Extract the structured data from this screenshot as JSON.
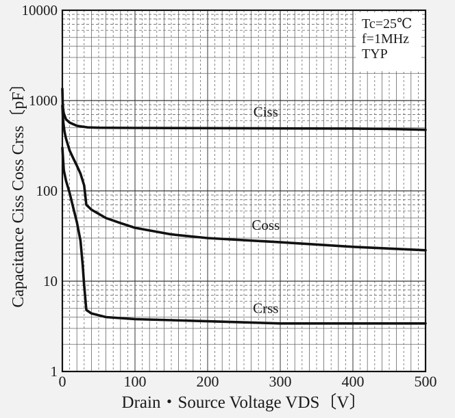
{
  "chart_data": {
    "type": "line",
    "x_scale": "linear",
    "y_scale": "log",
    "xlim": [
      0,
      500
    ],
    "ylim": [
      1,
      10000
    ],
    "x_ticks": [
      "0",
      "100",
      "200",
      "300",
      "400",
      "500"
    ],
    "y_ticks": [
      "1",
      "10",
      "100",
      "1000",
      "10000"
    ],
    "xlabel": "Drain・Source Voltage VDS〔V〕",
    "ylabel": "Capacitance  Ciss Coss Crss〔pF〕",
    "conditions": [
      "Tc=25℃",
      "f=1MHz",
      "TYP"
    ],
    "grid": true,
    "series": [
      {
        "name": "Ciss",
        "x": [
          0,
          0.5,
          1,
          2,
          5,
          10,
          20,
          35,
          50,
          100,
          200,
          300,
          400,
          450,
          500
        ],
        "y": [
          1350,
          950,
          800,
          720,
          620,
          570,
          525,
          505,
          500,
          498,
          495,
          492,
          490,
          485,
          475
        ]
      },
      {
        "name": "Coss",
        "x": [
          0,
          1,
          3,
          5,
          10,
          15,
          20,
          25,
          30,
          33,
          40,
          60,
          80,
          100,
          150,
          200,
          300,
          400,
          500
        ],
        "y": [
          880,
          600,
          450,
          380,
          280,
          230,
          190,
          155,
          115,
          70,
          62,
          50,
          44,
          39,
          33,
          30,
          27,
          24,
          22
        ]
      },
      {
        "name": "Crss",
        "x": [
          0,
          2,
          5,
          10,
          15,
          20,
          25,
          28,
          30,
          33,
          40,
          60,
          100,
          150,
          200,
          300,
          400,
          500
        ],
        "y": [
          300,
          170,
          130,
          95,
          65,
          45,
          28,
          15,
          9,
          4.8,
          4.4,
          4.0,
          3.8,
          3.7,
          3.6,
          3.4,
          3.4,
          3.4
        ]
      }
    ]
  }
}
